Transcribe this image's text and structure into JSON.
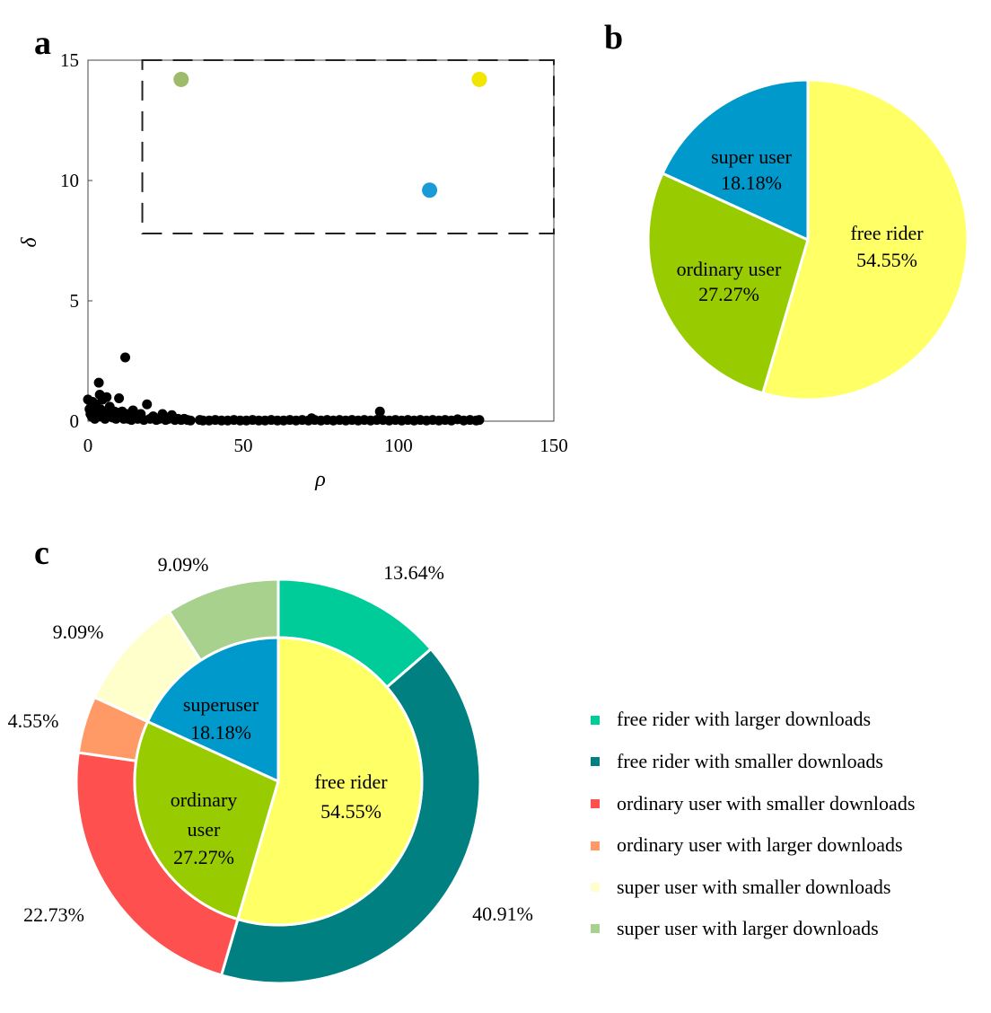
{
  "panels": {
    "a": "a",
    "b": "b",
    "c": "c"
  },
  "chart_data": [
    {
      "id": "a",
      "type": "scatter",
      "xlabel": "ρ",
      "ylabel": "δ",
      "xlim": [
        0,
        150
      ],
      "ylim": [
        0,
        15
      ],
      "xticks": [
        "0",
        "50",
        "100",
        "150"
      ],
      "yticks": [
        "0",
        "5",
        "10",
        "15"
      ],
      "highlight_box": {
        "x": [
          17.5,
          150
        ],
        "y": [
          7.8,
          15
        ]
      },
      "highlight_points": [
        {
          "x": 30,
          "y": 14.2,
          "color": "#9dbb6b"
        },
        {
          "x": 126,
          "y": 14.2,
          "color": "#f2e500"
        },
        {
          "x": 110,
          "y": 9.6,
          "color": "#1a9ad6"
        }
      ],
      "black_points": [
        [
          0,
          0.9
        ],
        [
          0.5,
          0.5
        ],
        [
          0.8,
          0.3
        ],
        [
          1,
          0.6
        ],
        [
          1.2,
          0.2
        ],
        [
          1.5,
          0.8
        ],
        [
          2,
          0.4
        ],
        [
          2.2,
          0.1
        ],
        [
          2.5,
          0.7
        ],
        [
          3,
          0.3
        ],
        [
          3.5,
          1.6
        ],
        [
          3.8,
          1.1
        ],
        [
          4,
          0.5
        ],
        [
          4.3,
          0.2
        ],
        [
          4.7,
          0.9
        ],
        [
          5,
          0.4
        ],
        [
          5.5,
          0.1
        ],
        [
          6,
          1.0
        ],
        [
          6.5,
          0.3
        ],
        [
          7,
          0.6
        ],
        [
          7.5,
          0.2
        ],
        [
          8,
          0.15
        ],
        [
          8.5,
          0.4
        ],
        [
          9,
          0.1
        ],
        [
          9.5,
          0.35
        ],
        [
          10,
          0.95
        ],
        [
          10.5,
          0.2
        ],
        [
          11,
          0.4
        ],
        [
          11.5,
          0.1
        ],
        [
          12,
          2.65
        ],
        [
          12.5,
          0.3
        ],
        [
          13,
          0.1
        ],
        [
          13.5,
          0.2
        ],
        [
          14,
          0.05
        ],
        [
          14.5,
          0.45
        ],
        [
          15,
          0.15
        ],
        [
          16,
          0.1
        ],
        [
          17,
          0.3
        ],
        [
          18,
          0.05
        ],
        [
          19,
          0.7
        ],
        [
          20,
          0.1
        ],
        [
          21,
          0.2
        ],
        [
          22,
          0.05
        ],
        [
          23,
          0.1
        ],
        [
          24,
          0.3
        ],
        [
          25,
          0.05
        ],
        [
          26,
          0.1
        ],
        [
          27,
          0.25
        ],
        [
          28,
          0.05
        ],
        [
          29,
          0.1
        ],
        [
          30,
          0.05
        ],
        [
          31,
          0.1
        ],
        [
          32,
          0.05
        ],
        [
          33,
          0.03
        ],
        [
          36,
          0.05
        ],
        [
          37,
          0.03
        ],
        [
          39,
          0.03
        ],
        [
          41,
          0.05
        ],
        [
          43,
          0.03
        ],
        [
          45,
          0.03
        ],
        [
          47,
          0.05
        ],
        [
          49,
          0.03
        ],
        [
          51,
          0.03
        ],
        [
          53,
          0.05
        ],
        [
          55,
          0.03
        ],
        [
          57,
          0.03
        ],
        [
          59,
          0.05
        ],
        [
          61,
          0.03
        ],
        [
          63,
          0.03
        ],
        [
          65,
          0.05
        ],
        [
          67,
          0.03
        ],
        [
          69,
          0.05
        ],
        [
          71,
          0.03
        ],
        [
          72,
          0.12
        ],
        [
          73,
          0.05
        ],
        [
          75,
          0.03
        ],
        [
          77,
          0.05
        ],
        [
          79,
          0.03
        ],
        [
          81,
          0.05
        ],
        [
          83,
          0.03
        ],
        [
          85,
          0.05
        ],
        [
          87,
          0.03
        ],
        [
          89,
          0.05
        ],
        [
          91,
          0.03
        ],
        [
          93,
          0.05
        ],
        [
          94,
          0.4
        ],
        [
          95,
          0.05
        ],
        [
          97,
          0.03
        ],
        [
          99,
          0.05
        ],
        [
          101,
          0.03
        ],
        [
          103,
          0.05
        ],
        [
          105,
          0.03
        ],
        [
          107,
          0.05
        ],
        [
          109,
          0.03
        ],
        [
          111,
          0.05
        ],
        [
          113,
          0.03
        ],
        [
          115,
          0.05
        ],
        [
          117,
          0.03
        ],
        [
          119,
          0.08
        ],
        [
          121,
          0.03
        ],
        [
          123,
          0.05
        ],
        [
          125,
          0.03
        ],
        [
          126,
          0.05
        ]
      ]
    },
    {
      "id": "b",
      "type": "pie",
      "slices": [
        {
          "label": "free rider",
          "value": 54.55,
          "text": "54.55%",
          "color": "#ffff66"
        },
        {
          "label": "ordinary user",
          "value": 27.27,
          "text": "27.27%",
          "color": "#99cc00"
        },
        {
          "label": "super user",
          "value": 18.18,
          "text": "18.18%",
          "color": "#0099cc"
        }
      ]
    },
    {
      "id": "c",
      "type": "pie",
      "inner": [
        {
          "label1": "free rider",
          "label2": "",
          "value": 54.55,
          "text": "54.55%",
          "color": "#ffff66"
        },
        {
          "label1": "ordinary",
          "label2": "user",
          "value": 27.27,
          "text": "27.27%",
          "color": "#99cc00"
        },
        {
          "label1": "superuser",
          "label2": "",
          "value": 18.18,
          "text": "18.18%",
          "color": "#0099cc"
        }
      ],
      "outer": [
        {
          "name": "free rider with larger downloads",
          "value": 13.64,
          "text": "13.64%",
          "color": "#00cc99"
        },
        {
          "name": "free rider with smaller downloads",
          "value": 40.91,
          "text": "40.91%",
          "color": "#008080"
        },
        {
          "name": "ordinary user with smaller downloads",
          "value": 22.73,
          "text": "22.73%",
          "color": "#ff5050"
        },
        {
          "name": "ordinary user with larger downloads",
          "value": 4.55,
          "text": "4.55%",
          "color": "#ff9966"
        },
        {
          "name": "super user with smaller downloads",
          "value": 9.09,
          "text": "9.09%",
          "color": "#ffffcc"
        },
        {
          "name": "super user with larger downloads",
          "value": 9.09,
          "text": "9.09%",
          "color": "#a9d18e"
        }
      ]
    }
  ]
}
